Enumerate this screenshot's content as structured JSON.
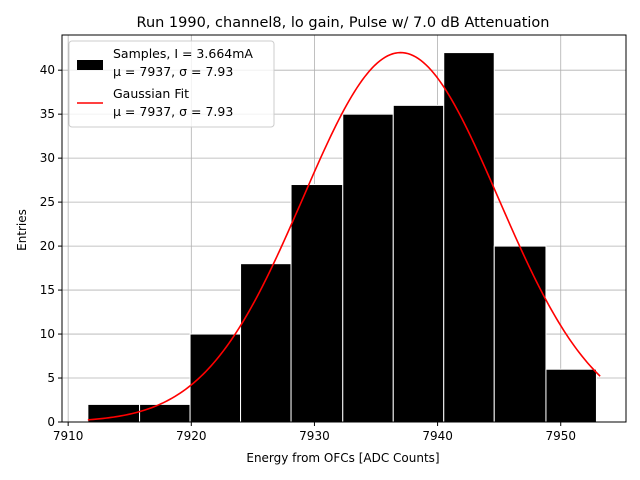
{
  "chart_data": {
    "type": "histogram",
    "title": "Run 1990, channel8, lo gain, Pulse w/ 7.0 dB Attenuation",
    "xlabel": "Energy from OFCs [ADC Counts]",
    "ylabel": "Entries",
    "xlim": [
      7909.5,
      7955.3
    ],
    "ylim": [
      0,
      44
    ],
    "xticks": [
      7910,
      7920,
      7930,
      7940,
      7950
    ],
    "yticks": [
      0,
      5,
      10,
      15,
      20,
      25,
      30,
      35,
      40
    ],
    "grid": true,
    "legend_position": "top-left",
    "bins": [
      {
        "x0": 7911.6,
        "x1": 7915.8,
        "count": 2
      },
      {
        "x0": 7915.8,
        "x1": 7919.9,
        "count": 2
      },
      {
        "x0": 7919.9,
        "x1": 7924.0,
        "count": 10
      },
      {
        "x0": 7924.0,
        "x1": 7928.1,
        "count": 18
      },
      {
        "x0": 7928.1,
        "x1": 7932.3,
        "count": 27
      },
      {
        "x0": 7932.3,
        "x1": 7936.4,
        "count": 35
      },
      {
        "x0": 7936.4,
        "x1": 7940.5,
        "count": 36
      },
      {
        "x0": 7940.5,
        "x1": 7944.6,
        "count": 42
      },
      {
        "x0": 7944.6,
        "x1": 7948.8,
        "count": 20
      },
      {
        "x0": 7948.8,
        "x1": 7952.9,
        "count": 6
      }
    ],
    "fit": {
      "name": "Gaussian Fit",
      "mu": 7937,
      "sigma": 7.93,
      "amplitude": 42,
      "x_range": [
        7911.6,
        7953.2
      ],
      "color": "#ff0000"
    },
    "bar_color": "#000000",
    "bar_edge_color": "#ffffff",
    "legend": [
      {
        "label_line1": "Samples, I = 3.664mA",
        "label_line2": "μ = 7937, σ = 7.93"
      },
      {
        "label_line1": "Gaussian Fit",
        "label_line2": "μ = 7937, σ = 7.93"
      }
    ]
  }
}
